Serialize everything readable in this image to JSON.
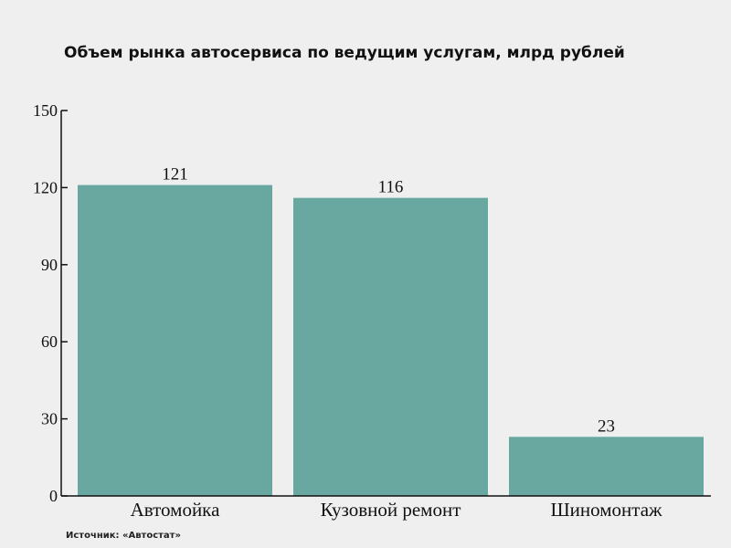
{
  "chart_data": {
    "type": "bar",
    "title": "Объем рынка автосервиса по ведущим услугам, млрд рублей",
    "categories": [
      "Автомойка",
      "Кузовной ремонт",
      "Шиномонтаж"
    ],
    "values": [
      121,
      116,
      23
    ],
    "data_labels": [
      "121",
      "116",
      "23"
    ],
    "yticks": [
      "0",
      "30",
      "60",
      "90",
      "120",
      "150"
    ],
    "ylim": [
      0,
      150
    ],
    "xlabel": "",
    "ylabel": "",
    "grid": false,
    "bar_color": "#68a8a1",
    "axis_color": "#111111"
  },
  "source": "Источник: «Автостат»"
}
